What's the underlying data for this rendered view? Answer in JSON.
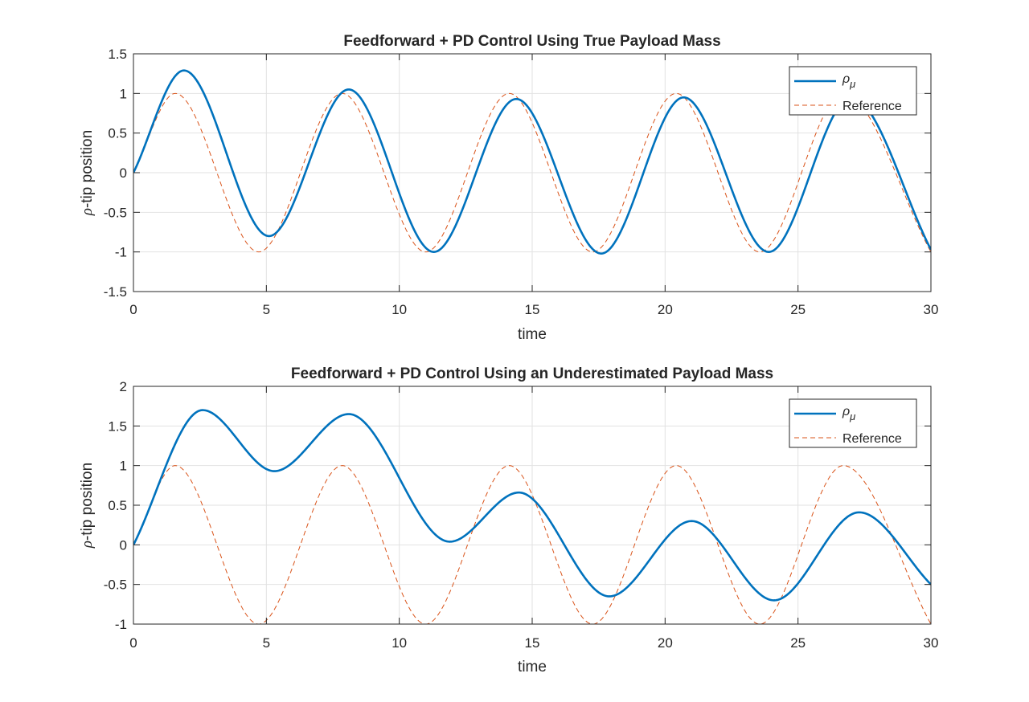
{
  "colors": {
    "measured": "#0072BD",
    "reference": "#D95319",
    "grid": "#e2e2e2",
    "axis": "#262626"
  },
  "chart_data": [
    {
      "type": "line",
      "title": "Feedforward + PD Control Using True Payload Mass",
      "xlabel": "time",
      "ylabel_symbol": "ρ",
      "ylabel_rest": "-tip position",
      "xlim": [
        0,
        30
      ],
      "ylim": [
        -1.5,
        1.5
      ],
      "xticks": [
        0,
        5,
        10,
        15,
        20,
        25,
        30
      ],
      "xtick_labels": [
        "0",
        "5",
        "10",
        "15",
        "20",
        "25",
        "30"
      ],
      "yticks": [
        -1.5,
        -1,
        -0.5,
        0,
        0.5,
        1,
        1.5
      ],
      "ytick_labels": [
        "-1.5",
        "-1",
        "-0.5",
        "0",
        "0.5",
        "1",
        "1.5"
      ],
      "grid": true,
      "legend_position": "top-right",
      "series": [
        {
          "name": "ρ_μ",
          "name_symbol": "ρ",
          "name_subscript": "μ",
          "style": "solid",
          "x": [
            0,
            1.9,
            5.1,
            8.1,
            11.3,
            14.4,
            17.6,
            20.7,
            23.9,
            27.0,
            30.0
          ],
          "y": [
            0,
            1.29,
            -0.8,
            1.05,
            -1.0,
            0.93,
            -1.02,
            0.95,
            -1.0,
            0.95,
            -0.97
          ]
        },
        {
          "name": "Reference",
          "style": "dashed",
          "x": [
            0,
            1.571,
            4.712,
            7.854,
            10.996,
            14.137,
            17.279,
            20.42,
            23.562,
            26.704,
            30.0
          ],
          "y": [
            0,
            1,
            -1,
            1,
            -1,
            1,
            -1,
            1,
            -1,
            1,
            -1
          ]
        }
      ]
    },
    {
      "type": "line",
      "title": "Feedforward + PD Control Using an Underestimated Payload Mass",
      "xlabel": "time",
      "ylabel_symbol": "ρ",
      "ylabel_rest": "-tip position",
      "xlim": [
        0,
        30
      ],
      "ylim": [
        -1,
        2
      ],
      "xticks": [
        0,
        5,
        10,
        15,
        20,
        25,
        30
      ],
      "xtick_labels": [
        "0",
        "5",
        "10",
        "15",
        "20",
        "25",
        "30"
      ],
      "yticks": [
        -1,
        -0.5,
        0,
        0.5,
        1,
        1.5,
        2
      ],
      "ytick_labels": [
        "-1",
        "-0.5",
        "0",
        "0.5",
        "1",
        "1.5",
        "2"
      ],
      "grid": true,
      "legend_position": "top-right",
      "series": [
        {
          "name": "ρ_μ",
          "name_symbol": "ρ",
          "name_subscript": "μ",
          "style": "solid",
          "x": [
            0,
            2.6,
            5.3,
            8.1,
            11.9,
            14.5,
            17.9,
            21.0,
            24.1,
            27.3,
            30.0
          ],
          "y": [
            0,
            1.7,
            0.93,
            1.65,
            0.04,
            0.66,
            -0.65,
            0.3,
            -0.7,
            0.41,
            -0.5
          ]
        },
        {
          "name": "Reference",
          "style": "dashed",
          "x": [
            0,
            1.571,
            4.712,
            7.854,
            10.996,
            14.137,
            17.279,
            20.42,
            23.562,
            26.704,
            30.0
          ],
          "y": [
            0,
            1,
            -1,
            1,
            -1,
            1,
            -1,
            1,
            -1,
            1,
            -1
          ]
        }
      ]
    }
  ]
}
